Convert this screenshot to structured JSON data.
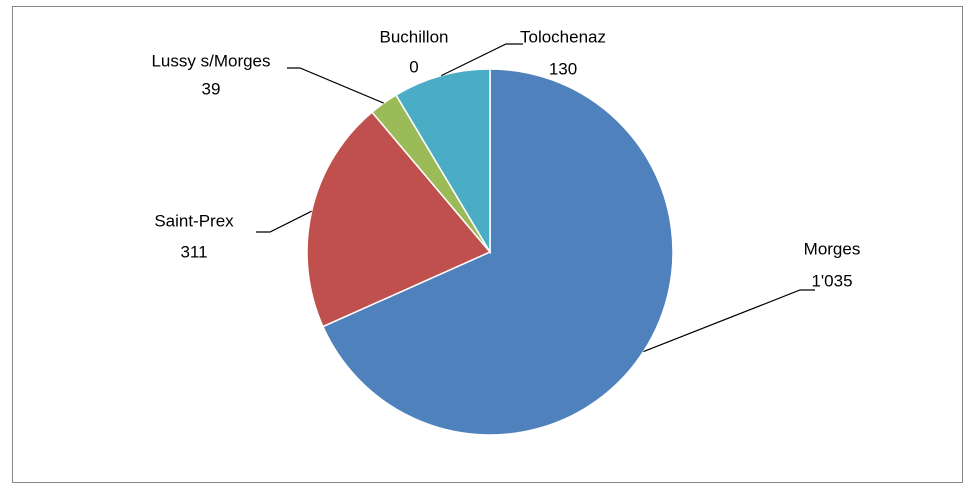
{
  "chart_data": {
    "type": "pie",
    "categories": [
      "Morges",
      "Saint-Prex",
      "Lussy s/Morges",
      "Buchillon",
      "Tolochenaz"
    ],
    "values": [
      1035,
      311,
      39,
      0,
      130
    ],
    "value_labels": [
      "1'035",
      "311",
      "39",
      "0",
      "130"
    ],
    "colors": [
      "#4f81bd",
      "#c0504d",
      "#9bbb59",
      "#8064a2",
      "#4bacc6"
    ]
  }
}
